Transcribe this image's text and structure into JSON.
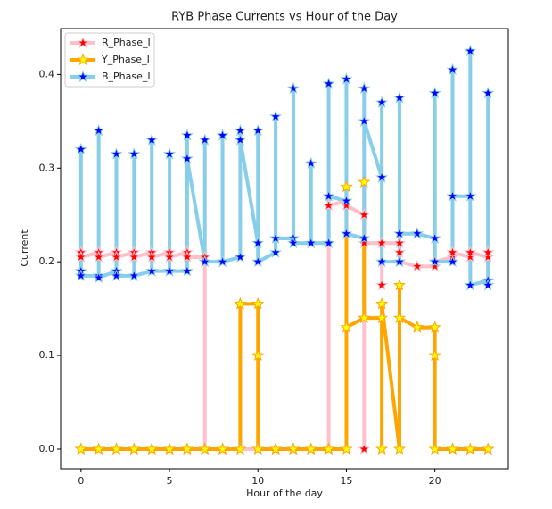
{
  "chart_data": {
    "type": "line",
    "title": "RYB Phase Currents vs Hour of the Day",
    "xlabel": "Hour of the day",
    "ylabel": "Current",
    "x": [
      0,
      0,
      0,
      1,
      1,
      1,
      2,
      2,
      2,
      3,
      3,
      3,
      4,
      4,
      4,
      5,
      5,
      5,
      6,
      6,
      6,
      7,
      7,
      7,
      8,
      8,
      8,
      9,
      9,
      9,
      10,
      10,
      10,
      11,
      11,
      11,
      12,
      12,
      12,
      13,
      13,
      13,
      14,
      14,
      14,
      15,
      15,
      15,
      16,
      16,
      16,
      17,
      17,
      17,
      18,
      18,
      18,
      19,
      19,
      19,
      20,
      20,
      20,
      21,
      21,
      21,
      22,
      22,
      22,
      23,
      23,
      23
    ],
    "series": [
      {
        "name": "R_Phase_I",
        "color": "#ffc0cb",
        "marker_color": "#ff0000",
        "values": [
          0.21,
          0.21,
          0.205,
          0.21,
          0.21,
          0.205,
          0.21,
          0.21,
          0.205,
          0.21,
          0.21,
          0.205,
          0.21,
          0.21,
          0.205,
          0.21,
          0.21,
          0.205,
          0.21,
          0.21,
          0.205,
          0.205,
          0,
          0,
          0,
          0,
          0,
          0,
          0,
          0,
          0,
          0,
          0,
          0,
          0,
          0,
          0,
          0,
          0,
          0,
          0,
          0,
          0,
          0.26,
          0.26,
          0.265,
          0.28,
          0.26,
          0.25,
          0,
          0.22,
          0.22,
          0.175,
          0.22,
          0.22,
          0.21,
          0.2,
          0.195,
          0.195,
          0.195,
          0.195,
          0.2,
          0.2,
          0.205,
          0.21,
          0.21,
          0.205,
          0.21,
          0.21,
          0.205,
          0.21,
          0.21
        ]
      },
      {
        "name": "Y_Phase_I",
        "color": "#ffa500",
        "marker_color": "#ffff00",
        "values": [
          0,
          0,
          0,
          0,
          0,
          0,
          0,
          0,
          0,
          0,
          0,
          0,
          0,
          0,
          0,
          0,
          0,
          0,
          0,
          0,
          0,
          0,
          0,
          0,
          0,
          0,
          0,
          0,
          0.155,
          0.155,
          0.155,
          0.1,
          0,
          0,
          0,
          0,
          0,
          0,
          0,
          0,
          0,
          0,
          0,
          0,
          0,
          0,
          0.28,
          0.13,
          0.14,
          0.285,
          0.14,
          0.14,
          0,
          0.155,
          0,
          0.175,
          0.14,
          0.13,
          0.13,
          0.13,
          0.13,
          0.1,
          0,
          0,
          0,
          0,
          0,
          0,
          0,
          0,
          0,
          0
        ]
      },
      {
        "name": "B_Phase_I",
        "color": "#87ceeb",
        "marker_color": "#0000ff",
        "values": [
          0.19,
          0.32,
          0.185,
          0.185,
          0.34,
          0.183,
          0.19,
          0.315,
          0.185,
          0.185,
          0.315,
          0.185,
          0.19,
          0.33,
          0.19,
          0.19,
          0.315,
          0.19,
          0.19,
          0.335,
          0.31,
          0.2,
          0.33,
          0.2,
          0.2,
          0.335,
          0.2,
          0.205,
          0.34,
          0.33,
          0.22,
          0.34,
          0.2,
          0.21,
          0.355,
          0.225,
          0.225,
          0.385,
          0.22,
          0.22,
          0.305,
          0.22,
          0.22,
          0.39,
          0.27,
          0.265,
          0.395,
          0.23,
          0.225,
          0.385,
          0.35,
          0.29,
          0.37,
          0.2,
          0.2,
          0.375,
          0.23,
          0.23,
          0.23,
          0.23,
          0.225,
          0.38,
          0.2,
          0.2,
          0.405,
          0.27,
          0.27,
          0.425,
          0.175,
          0.18,
          0.38,
          0.175
        ]
      }
    ],
    "xlim": [
      -1.15,
      24.15
    ],
    "xticks": [
      0,
      5,
      10,
      15,
      20
    ],
    "ylim": [
      -0.021,
      0.449
    ],
    "yticks": [
      {
        "value": 0,
        "label": "0.0"
      },
      0.1,
      0.2,
      0.3,
      0.4
    ],
    "legend": "upper left"
  }
}
